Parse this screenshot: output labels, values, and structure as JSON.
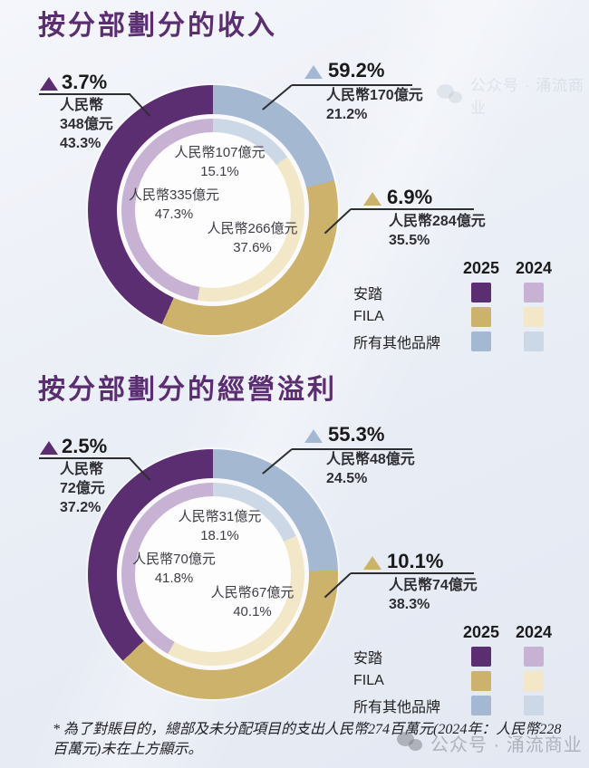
{
  "colors": {
    "title": "#5b2d71",
    "anta_2025": "#5b2d71",
    "anta_2024": "#c7b2d3",
    "fila_2025": "#cdb26c",
    "fila_2024": "#f2e7c6",
    "others_2025": "#a5b8d1",
    "others_2024": "#cdd8e6",
    "callout_line": "#2e2e30"
  },
  "legend": {
    "years": [
      "2025",
      "2024"
    ],
    "rows": [
      "安踏",
      "FILA",
      "所有其他品牌"
    ]
  },
  "footnote": "* 為了對賬目的，總部及未分配項目的支出人民幣274百萬元(2024年：人民幣228百萬元)未在上方顯示。",
  "watermark": {
    "text": "公众号 · 涌流商业"
  },
  "chart_data": [
    {
      "type": "donut",
      "title": "按分部劃分的收入",
      "legend_position": "right",
      "rings": {
        "outer": {
          "year": "2025",
          "segments": [
            {
              "key": "others",
              "label": "所有其他品牌",
              "value": "人民幣170億元",
              "pct": 21.2,
              "growth": "59.2%"
            },
            {
              "key": "fila",
              "label": "FILA",
              "value": "人民幣284億元",
              "pct": 35.5,
              "growth": "6.9%"
            },
            {
              "key": "anta",
              "label": "安踏",
              "value": "人民幣348億元",
              "pct": 43.3,
              "growth": "3.7%"
            }
          ]
        },
        "inner": {
          "year": "2024",
          "segments": [
            {
              "key": "others",
              "label": "所有其他品牌",
              "value": "人民幣107億元",
              "pct": 15.1
            },
            {
              "key": "fila",
              "label": "FILA",
              "value": "人民幣266億元",
              "pct": 37.6
            },
            {
              "key": "anta",
              "label": "安踏",
              "value": "人民幣335億元",
              "pct": 47.3
            }
          ]
        }
      },
      "callouts": {
        "anta": {
          "growth": "3.7%",
          "line1": "人民幣",
          "line2": "348億元",
          "line3": "43.3%"
        },
        "others": {
          "growth": "59.2%",
          "line1": "人民幣170億元",
          "line2": "21.2%"
        },
        "fila": {
          "growth": "6.9%",
          "line1": "人民幣284億元",
          "line2": "35.5%"
        }
      },
      "center_labels": {
        "others": {
          "value": "人民幣107億元",
          "pct": "15.1%"
        },
        "anta": {
          "value": "人民幣335億元",
          "pct": "47.3%"
        },
        "fila": {
          "value": "人民幣266億元",
          "pct": "37.6%"
        }
      }
    },
    {
      "type": "donut",
      "title": "按分部劃分的經營溢利",
      "legend_position": "right",
      "rings": {
        "outer": {
          "year": "2025",
          "segments": [
            {
              "key": "others",
              "label": "所有其他品牌",
              "value": "人民幣48億元",
              "pct": 24.5,
              "growth": "55.3%"
            },
            {
              "key": "fila",
              "label": "FILA",
              "value": "人民幣74億元",
              "pct": 38.3,
              "growth": "10.1%"
            },
            {
              "key": "anta",
              "label": "安踏",
              "value": "人民幣72億元",
              "pct": 37.2,
              "growth": "2.5%"
            }
          ]
        },
        "inner": {
          "year": "2024",
          "segments": [
            {
              "key": "others",
              "label": "所有其他品牌",
              "value": "人民幣31億元",
              "pct": 18.1
            },
            {
              "key": "fila",
              "label": "FILA",
              "value": "人民幣67億元",
              "pct": 40.1
            },
            {
              "key": "anta",
              "label": "安踏",
              "value": "人民幣70億元",
              "pct": 41.8
            }
          ]
        }
      },
      "callouts": {
        "anta": {
          "growth": "2.5%",
          "line1": "人民幣",
          "line2": "72億元",
          "line3": "37.2%"
        },
        "others": {
          "growth": "55.3%",
          "line1": "人民幣48億元",
          "line2": "24.5%"
        },
        "fila": {
          "growth": "10.1%",
          "line1": "人民幣74億元",
          "line2": "38.3%"
        }
      },
      "center_labels": {
        "others": {
          "value": "人民幣31億元",
          "pct": "18.1%"
        },
        "anta": {
          "value": "人民幣70億元",
          "pct": "41.8%"
        },
        "fila": {
          "value": "人民幣67億元",
          "pct": "40.1%"
        }
      }
    }
  ]
}
